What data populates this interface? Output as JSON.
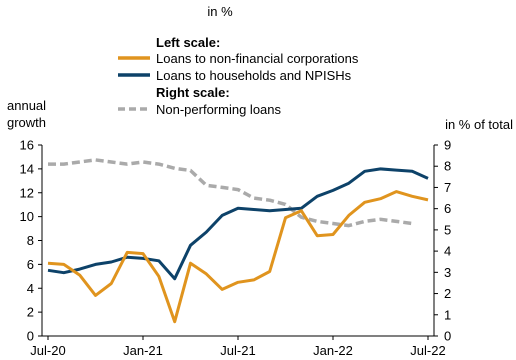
{
  "unit_label": "in %",
  "legend": {
    "left_heading": "Left scale:",
    "right_heading": "Right scale:"
  },
  "chart_data": {
    "type": "line",
    "left_axis": {
      "label": "annual growth",
      "ylim": [
        0,
        16
      ],
      "ticks": [
        0,
        2,
        4,
        6,
        8,
        10,
        12,
        14,
        16
      ]
    },
    "right_axis": {
      "label": "in % of total",
      "ylim": [
        0,
        9
      ],
      "ticks": [
        0,
        1,
        2,
        3,
        4,
        5,
        6,
        7,
        8,
        9
      ]
    },
    "x_ticks": [
      "Jul-20",
      "Jan-21",
      "Jul-21",
      "Jan-22",
      "Jul-22"
    ],
    "x": [
      "Jul-20",
      "Aug-20",
      "Sep-20",
      "Oct-20",
      "Nov-20",
      "Dec-20",
      "Jan-21",
      "Feb-21",
      "Mar-21",
      "Apr-21",
      "May-21",
      "Jun-21",
      "Jul-21",
      "Aug-21",
      "Sep-21",
      "Oct-21",
      "Nov-21",
      "Dec-21",
      "Jan-22",
      "Feb-22",
      "Mar-22",
      "Apr-22",
      "May-22",
      "Jun-22",
      "Jul-22"
    ],
    "grid": false,
    "series": [
      {
        "name": "Loans to non-financial corporations",
        "axis": "left",
        "color": "#E0941E",
        "style": "solid",
        "values": [
          6.1,
          6.0,
          5.1,
          3.4,
          4.4,
          7.0,
          6.9,
          5.0,
          1.2,
          6.1,
          5.2,
          3.9,
          4.5,
          4.7,
          5.4,
          9.9,
          10.5,
          8.4,
          8.5,
          10.1,
          11.2,
          11.5,
          12.1,
          11.7,
          11.4
        ]
      },
      {
        "name": "Loans to households and NPISHs",
        "axis": "left",
        "color": "#0D4269",
        "style": "solid",
        "values": [
          5.5,
          5.3,
          5.6,
          6.0,
          6.2,
          6.6,
          6.5,
          6.3,
          4.8,
          7.6,
          8.7,
          10.1,
          10.7,
          10.6,
          10.5,
          10.6,
          10.7,
          11.7,
          12.2,
          12.8,
          13.8,
          14.0,
          13.9,
          13.8,
          13.2
        ]
      },
      {
        "name": "Non-performing loans",
        "axis": "right",
        "color": "#AAAAAA",
        "style": "dashed",
        "values": [
          8.1,
          8.1,
          8.2,
          8.3,
          8.2,
          8.1,
          8.2,
          8.1,
          7.9,
          7.8,
          7.1,
          7.0,
          6.9,
          6.5,
          6.4,
          6.2,
          5.6,
          5.4,
          5.3,
          5.2,
          5.4,
          5.5,
          5.4,
          5.3,
          null
        ]
      }
    ]
  }
}
